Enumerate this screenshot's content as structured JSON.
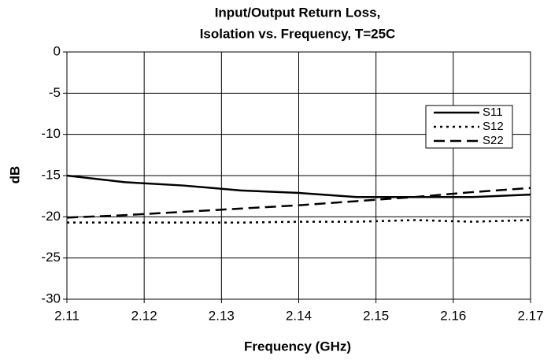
{
  "chart_data": {
    "type": "line",
    "title": [
      "Input/Output Return Loss,",
      "Isolation vs. Frequency, T=25C"
    ],
    "x_label": "Frequency (GHz)",
    "y_label": "dB",
    "x": [
      2.11,
      2.1175,
      2.125,
      2.1325,
      2.14,
      2.1475,
      2.155,
      2.1625,
      2.17
    ],
    "series": [
      {
        "name": "S11",
        "color": "#000000",
        "style": "solid",
        "values": [
          -15,
          -15.8,
          -16.2,
          -16.8,
          -17.1,
          -17.6,
          -17.6,
          -17.6,
          -17.3
        ]
      },
      {
        "name": "S12",
        "color": "#000000",
        "style": "dotted",
        "values": [
          -20.7,
          -20.7,
          -20.7,
          -20.7,
          -20.6,
          -20.6,
          -20.4,
          -20.6,
          -20.4
        ]
      },
      {
        "name": "S22",
        "color": "#000000",
        "style": "dashed",
        "values": [
          -20.1,
          -19.8,
          -19.4,
          -19.0,
          -18.6,
          -18.1,
          -17.6,
          -17.0,
          -16.5
        ]
      }
    ],
    "xlim": [
      2.11,
      2.17
    ],
    "xticks": [
      2.11,
      2.12,
      2.13,
      2.14,
      2.15,
      2.16,
      2.17
    ],
    "ylim": [
      -30,
      0
    ],
    "yticks": [
      0,
      -5,
      -10,
      -15,
      -20,
      -25,
      -30
    ],
    "grid": true,
    "legend": "upper right"
  }
}
